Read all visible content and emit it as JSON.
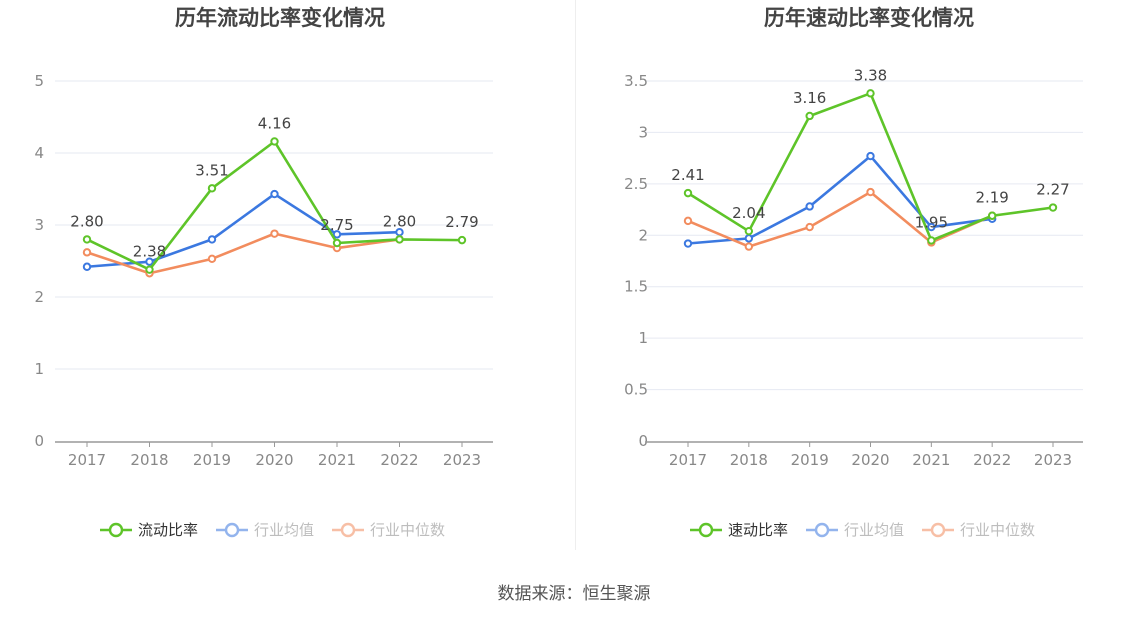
{
  "footer": {
    "source": "数据来源：恒生聚源"
  },
  "chart_data": [
    {
      "type": "line",
      "title": "历年流动比率变化情况",
      "categories": [
        "2017",
        "2018",
        "2019",
        "2020",
        "2021",
        "2022",
        "2023"
      ],
      "ylim": [
        0,
        5
      ],
      "yticks": [
        "0",
        "1",
        "2",
        "3",
        "4",
        "5"
      ],
      "grid": true,
      "legend_position": "bottom",
      "series": [
        {
          "name": "流动比率",
          "color": "#5ec429",
          "values": [
            2.8,
            2.38,
            3.51,
            4.16,
            2.75,
            2.8,
            2.79
          ],
          "labels": [
            "2.80",
            "2.38",
            "3.51",
            "4.16",
            "2.75",
            "2.80",
            "2.79"
          ]
        },
        {
          "name": "行业均值",
          "color": "#3b78e0",
          "values": [
            2.42,
            2.49,
            2.8,
            3.43,
            2.87,
            2.9,
            null
          ]
        },
        {
          "name": "行业中位数",
          "color": "#f28c5e",
          "values": [
            2.62,
            2.33,
            2.53,
            2.88,
            2.68,
            2.8,
            null
          ]
        }
      ]
    },
    {
      "type": "line",
      "title": "历年速动比率变化情况",
      "categories": [
        "2017",
        "2018",
        "2019",
        "2020",
        "2021",
        "2022",
        "2023"
      ],
      "ylim": [
        0,
        3.5
      ],
      "yticks": [
        "0",
        "0.5",
        "1",
        "1.5",
        "2",
        "2.5",
        "3",
        "3.5"
      ],
      "grid": true,
      "legend_position": "bottom",
      "series": [
        {
          "name": "速动比率",
          "color": "#5ec429",
          "values": [
            2.41,
            2.04,
            3.16,
            3.38,
            1.95,
            2.19,
            2.27
          ],
          "labels": [
            "2.41",
            "2.04",
            "3.16",
            "3.38",
            "1.95",
            "2.19",
            "2.27"
          ]
        },
        {
          "name": "行业均值",
          "color": "#3b78e0",
          "values": [
            1.92,
            1.97,
            2.28,
            2.77,
            2.08,
            2.16,
            null
          ]
        },
        {
          "name": "行业中位数",
          "color": "#f28c5e",
          "values": [
            2.14,
            1.89,
            2.08,
            2.42,
            1.93,
            2.19,
            null
          ]
        }
      ]
    }
  ]
}
